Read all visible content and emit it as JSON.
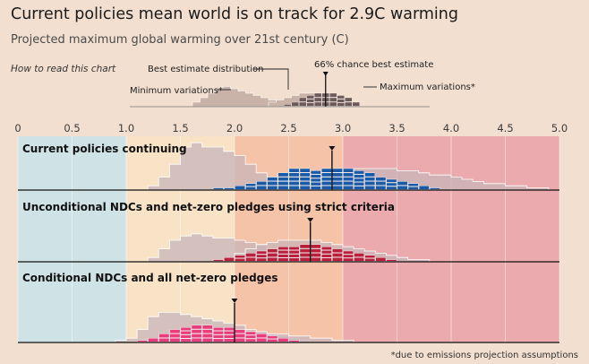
{
  "header": {
    "title": "Current policies mean world is on track for 2.9C warming",
    "subtitle": "Projected maximum global warming over 21st century (C)"
  },
  "legend_key": {
    "how_to_read": "How to read this chart",
    "best_estimate_distribution": "Best estimate distribution",
    "chance_best_estimate": "66% chance best estimate",
    "minimum_variations": "Minimum variations*",
    "maximum_variations": "Maximum variations*"
  },
  "footnote": "*due to emissions projection assumptions",
  "colors": {
    "background": "#f2dfd0",
    "zone_below_1": "#cfe3e6",
    "zone_1_to_2": "#f8e3c6",
    "zone_2_to_3": "#f5c4a8",
    "zone_above_3": "#ebaaad",
    "variation_fill": "#c8b4b8",
    "best_outline": "#ffffff"
  },
  "chart_data": {
    "type": "histogram",
    "title": "Current policies mean world is on track for 2.9C warming",
    "xlabel": "Projected maximum global warming over 21st century (C)",
    "xlim": [
      0,
      5.0
    ],
    "x_ticks": [
      "0",
      "0.5",
      "1.0",
      "1.5",
      "2.0",
      "2.5",
      "3.0",
      "3.5",
      "4.0",
      "4.5",
      "5.0"
    ],
    "bin_width": 0.1,
    "background_zones": [
      {
        "from": 0,
        "to": 1.0
      },
      {
        "from": 1.0,
        "to": 2.0
      },
      {
        "from": 2.0,
        "to": 3.0
      },
      {
        "from": 3.0,
        "to": 5.0
      }
    ],
    "series": [
      {
        "name": "Current policies continuing",
        "color": "#1a5aa6",
        "best_estimate": 2.9,
        "minimum_variations": {
          "start": 1.2,
          "values": [
            1,
            3,
            6,
            10,
            11,
            10,
            10,
            9,
            8,
            6,
            4,
            3,
            2,
            2,
            1.5,
            1
          ]
        },
        "maximum_variations": {
          "start": 2.5,
          "values": [
            1,
            1.5,
            2,
            3,
            4,
            4.5,
            5,
            5,
            5,
            5,
            4.5,
            4.5,
            4,
            3.5,
            3.5,
            3,
            2.5,
            2,
            1.5,
            1.5,
            1,
            1,
            0.5,
            0.5
          ]
        },
        "best_estimate_distribution": {
          "start": 1.8,
          "values": [
            0.5,
            0.5,
            1,
            1.5,
            2,
            3,
            4,
            5,
            5,
            4.5,
            5,
            5,
            5,
            4.5,
            4,
            3,
            2.5,
            2,
            1.5,
            1,
            0.5
          ]
        }
      },
      {
        "name": "Unconditional NDCs and net-zero pledges using strict criteria",
        "color": "#b8203c",
        "best_estimate": 2.7,
        "minimum_variations": {
          "start": 1.2,
          "values": [
            1,
            3,
            5,
            6,
            6.5,
            6,
            5.5,
            5.5,
            5,
            4.5,
            4,
            3,
            2.5,
            2,
            1.5,
            1,
            0.5
          ]
        },
        "maximum_variations": {
          "start": 2.0,
          "values": [
            2,
            3,
            4,
            4.5,
            5,
            5,
            5,
            5,
            4.5,
            4,
            3.5,
            3,
            2.5,
            2,
            1.5,
            1,
            0.5,
            0.5
          ]
        },
        "best_estimate_distribution": {
          "start": 1.8,
          "values": [
            0.5,
            1,
            1.5,
            2,
            2.5,
            3,
            3.5,
            3.5,
            4,
            4,
            3.5,
            3,
            2.5,
            2,
            1.5,
            1,
            0.5
          ]
        }
      },
      {
        "name": "Conditional NDCs and all net-zero pledges",
        "color": "#e83d7a",
        "best_estimate": 2.0,
        "minimum_variations": {
          "start": 0.9,
          "values": [
            0.5,
            1,
            3,
            6,
            7,
            7,
            6.5,
            6,
            5.5,
            5,
            4.5,
            4,
            3,
            2.5,
            2,
            1.5,
            1,
            0.5
          ]
        },
        "maximum_variations": {
          "start": 1.5,
          "values": [
            1,
            2,
            2.5,
            3,
            3,
            3,
            2.5,
            2.5,
            2,
            2,
            1.5,
            1.5,
            1,
            1,
            0.5,
            0.5
          ]
        },
        "best_estimate_distribution": {
          "start": 1.1,
          "values": [
            0.5,
            1,
            2,
            3,
            3.5,
            4,
            4,
            3.5,
            3.5,
            3,
            2.5,
            2,
            1.5,
            1,
            0.5
          ]
        }
      }
    ],
    "legend_example": {
      "best_estimate": 2.75,
      "minimum_variations": {
        "start": 1.0,
        "values": [
          1,
          2,
          3,
          4,
          4.5,
          4,
          3.5,
          3,
          2.5,
          2,
          1.5,
          1
        ]
      },
      "maximum_variations": {
        "start": 2.0,
        "values": [
          1,
          1.5,
          2,
          2.5,
          3,
          3,
          3,
          2.5,
          2,
          1.5,
          1
        ]
      },
      "best_estimate_distribution": {
        "start": 2.2,
        "values": [
          0.5,
          1,
          2,
          2.5,
          3,
          3,
          3,
          2.5,
          2,
          1
        ]
      }
    }
  }
}
